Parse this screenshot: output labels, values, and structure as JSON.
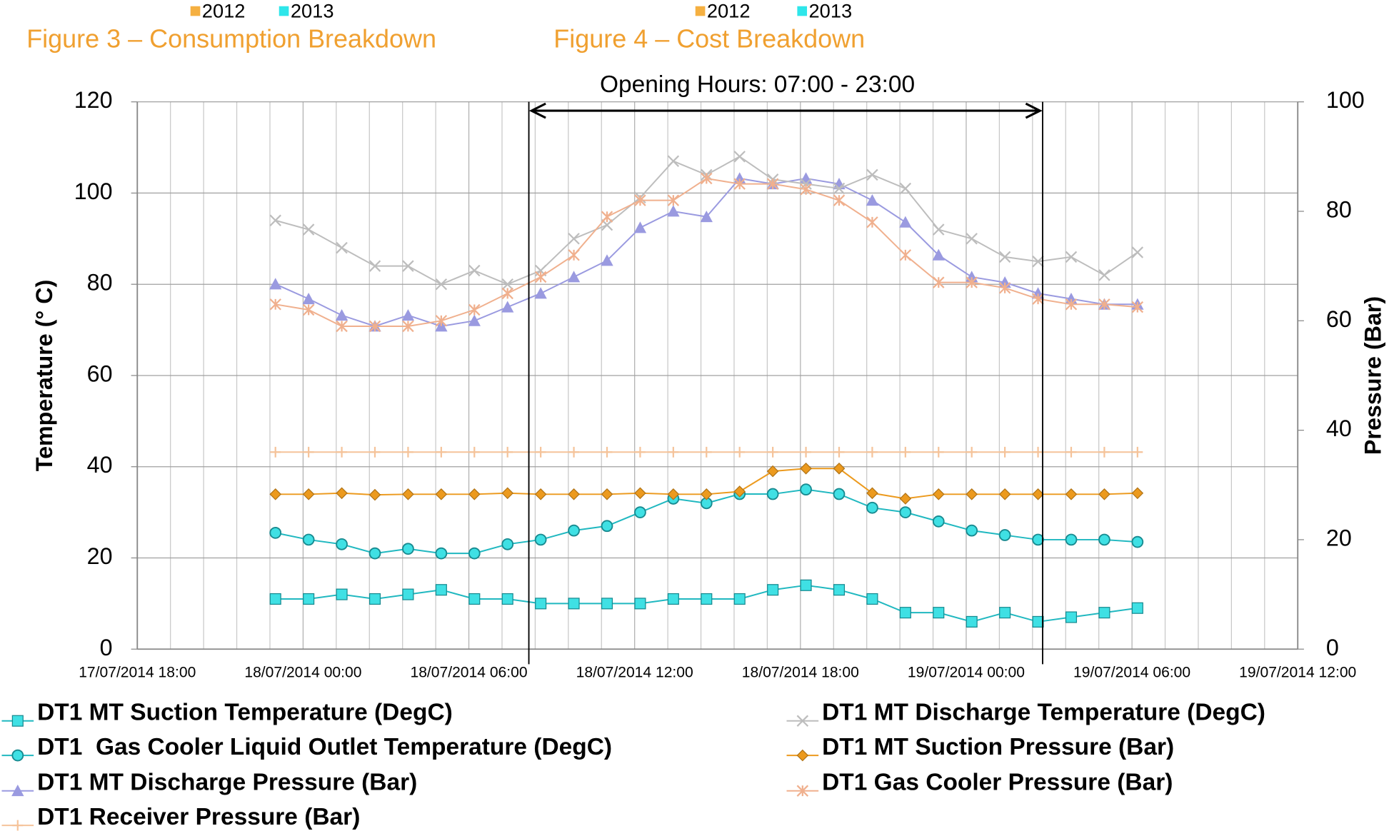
{
  "header": {
    "figures": [
      {
        "title": "Figure 3 – Consumption Breakdown",
        "legend": [
          {
            "name": "2012",
            "color": "#f5b041"
          },
          {
            "name": "2013",
            "color": "#2ee6ea"
          }
        ]
      },
      {
        "title": "Figure 4 – Cost Breakdown",
        "legend": [
          {
            "name": "2012",
            "color": "#f5b041"
          },
          {
            "name": "2013",
            "color": "#2ee6ea"
          }
        ]
      }
    ]
  },
  "chart_data": {
    "type": "line",
    "annotation": "Opening Hours: 07:00 - 23:00",
    "y_label": "Temperature (° C)",
    "y2_label": "Pressure (Bar)",
    "x": [
      "17/07/2014 23:00",
      "18/07/2014 00:12",
      "18/07/2014 01:24",
      "18/07/2014 02:36",
      "18/07/2014 03:48",
      "18/07/2014 05:00",
      "18/07/2014 06:12",
      "18/07/2014 07:24",
      "18/07/2014 08:36",
      "18/07/2014 09:48",
      "18/07/2014 11:00",
      "18/07/2014 12:12",
      "18/07/2014 13:24",
      "18/07/2014 14:36",
      "18/07/2014 15:48",
      "18/07/2014 17:00",
      "18/07/2014 18:12",
      "18/07/2014 19:24",
      "18/07/2014 20:36",
      "18/07/2014 21:48",
      "18/07/2014 23:00",
      "19/07/2014 00:12",
      "19/07/2014 01:24",
      "19/07/2014 02:36",
      "19/07/2014 03:48",
      "19/07/2014 05:00",
      "19/07/2014 06:12"
    ],
    "xlim": [
      "17/07/2014 18:00",
      "19/07/2014 12:00"
    ],
    "xticks": [
      "17/07/2014 18:00",
      "18/07/2014 00:00",
      "18/07/2014 06:00",
      "18/07/2014 12:00",
      "18/07/2014 18:00",
      "19/07/2014 00:00",
      "19/07/2014 06:00",
      "19/07/2014 12:00"
    ],
    "ylim": [
      0,
      120
    ],
    "yticks": [
      0,
      20,
      40,
      60,
      80,
      100,
      120
    ],
    "y2lim": [
      0,
      100
    ],
    "y2ticks": [
      0,
      20,
      40,
      60,
      80,
      100
    ],
    "grid": true,
    "series": [
      {
        "name": "DT1 MT Suction Temperature (DegC)",
        "color": "#20b8c0",
        "marker": "square",
        "values": [
          11,
          11,
          12,
          11,
          12,
          13,
          11,
          11,
          10,
          10,
          10,
          10,
          11,
          11,
          11,
          13,
          14,
          13,
          11,
          8,
          8,
          6,
          8,
          6,
          7,
          8,
          9
        ]
      },
      {
        "name": "DT1  Gas Cooler Liquid Outlet Temperature (DegC)",
        "color": "#20b8c0",
        "marker": "circle",
        "values": [
          25.5,
          24,
          23,
          21,
          22,
          21,
          21,
          23,
          24,
          26,
          27,
          30,
          33,
          32,
          34,
          34,
          35,
          34,
          31,
          30,
          28,
          26,
          25,
          24,
          24,
          24,
          23.5
        ]
      },
      {
        "name": "DT1 MT Discharge Pressure (Bar)",
        "color": "#9a9ae0",
        "marker": "triangle",
        "axis": "y2",
        "values": [
          66.7,
          64,
          61,
          59,
          61,
          59,
          60,
          62.5,
          65,
          68,
          71,
          77,
          80,
          79,
          86,
          85,
          86,
          85,
          82,
          78,
          72,
          68,
          67,
          65,
          64,
          63,
          63
        ]
      },
      {
        "name": "DT1 Receiver Pressure (Bar)",
        "color": "#f5c39a",
        "marker": "plus",
        "axis": "y2",
        "values": [
          36,
          36,
          36,
          36,
          36,
          36,
          36,
          36,
          36,
          36,
          36,
          36,
          36,
          36,
          36,
          36,
          36,
          36,
          36,
          36,
          36,
          36,
          36,
          36,
          36,
          36,
          36
        ]
      },
      {
        "name": "DT1 MT Discharge Temperature (DegC)",
        "color": "#bdbdbd",
        "marker": "x",
        "values": [
          94,
          92,
          88,
          84,
          84,
          80,
          83,
          80,
          83,
          90,
          93,
          99,
          107,
          104,
          108,
          103,
          102,
          101,
          104,
          101,
          92,
          90,
          86,
          85,
          86,
          82,
          87
        ]
      },
      {
        "name": "DT1 MT Suction Pressure (Bar)",
        "color": "#ec9a1e",
        "marker": "diamond",
        "axis": "y2",
        "values": [
          28.3,
          28.3,
          28.5,
          28.2,
          28.3,
          28.3,
          28.3,
          28.5,
          28.3,
          28.3,
          28.3,
          28.5,
          28.3,
          28.3,
          28.8,
          32.5,
          33,
          33,
          28.5,
          27.5,
          28.3,
          28.3,
          28.3,
          28.3,
          28.3,
          28.3,
          28.5
        ]
      },
      {
        "name": "DT1 Gas Cooler Pressure (Bar)",
        "color": "#f0b08e",
        "marker": "star",
        "axis": "y2",
        "values": [
          63,
          62,
          59,
          59,
          59,
          60,
          62,
          65,
          68,
          72,
          79,
          82,
          82,
          86,
          85,
          85,
          84,
          82,
          78,
          72,
          67,
          67,
          66,
          64,
          63,
          63,
          62.5
        ]
      }
    ]
  }
}
